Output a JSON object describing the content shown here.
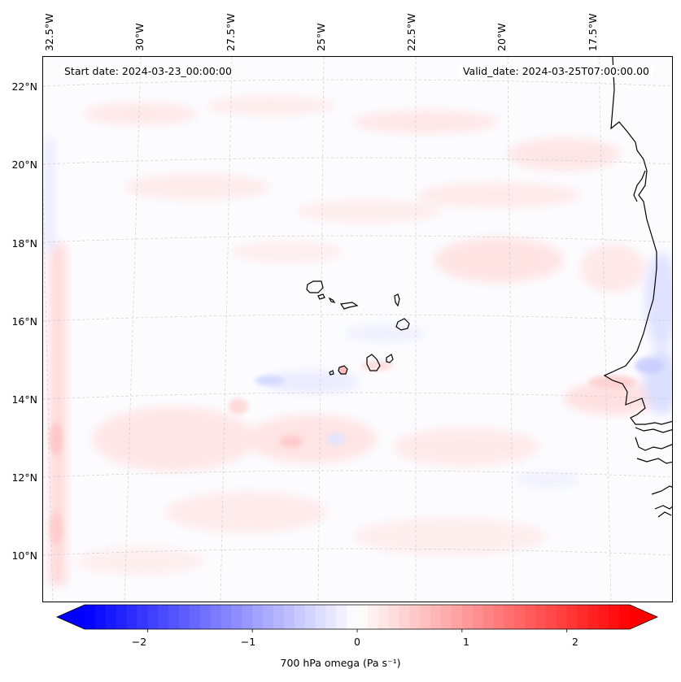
{
  "map": {
    "start_date": "Start date: 2024-03-23_00:00:00",
    "valid_date": "Valid_date: 2024-03-25T07:00:00.00",
    "lon_labels": [
      "32.5°W",
      "30°W",
      "27.5°W",
      "25°W",
      "22.5°W",
      "20°W",
      "17.5°W"
    ],
    "lat_labels": [
      "22°N",
      "20°N",
      "18°N",
      "16°N",
      "14°N",
      "12°N",
      "10°N"
    ],
    "gridlines": true
  },
  "colorbar": {
    "title": "700 hPa omega (Pa s⁻¹)",
    "ticks": [
      "−2",
      "−1",
      "0",
      "1",
      "2"
    ],
    "range": [
      -2.6,
      2.6
    ],
    "colormap": "bwr",
    "extend": "both",
    "neg_color": "#0000ff",
    "mid_color": "#ffffff",
    "pos_color": "#ff0000"
  },
  "colors": {
    "coastline": "#000000",
    "gridline": "#bbbbbb"
  }
}
